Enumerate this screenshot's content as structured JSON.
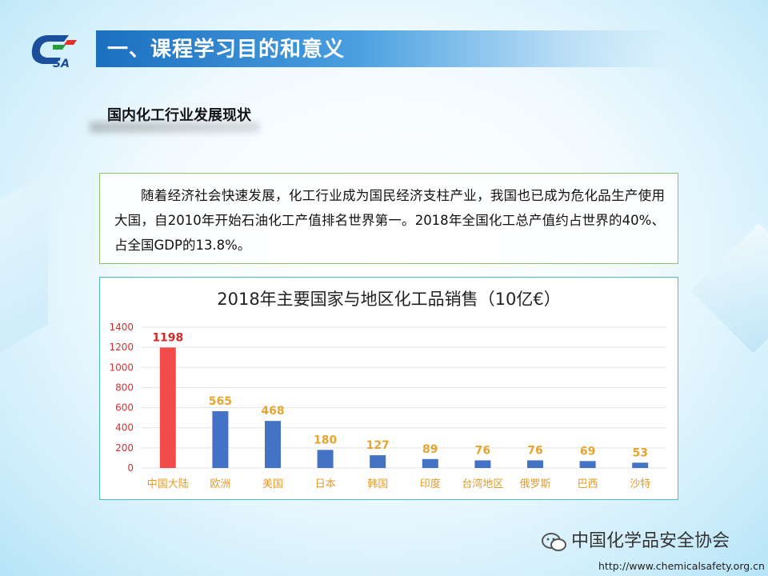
{
  "logo": {
    "text": "SA",
    "colors": {
      "blue": "#1b4f9c",
      "red": "#e03030",
      "green": "#2a9a3a"
    }
  },
  "header": {
    "title": "一、课程学习目的和意义"
  },
  "section": {
    "subtitle": "国内化工行业发展现状"
  },
  "paragraph": "随着经济社会快速发展，化工行业成为国民经济支柱产业，我国也已成为危化品生产使用大国，自2010年开始石油化工产值排名世界第一。2018年全国化工总产值约占世界的40%、占全国GDP的13.8%。",
  "chart_data": {
    "type": "bar",
    "title": "2018年主要国家与地区化工品销售（10亿€）",
    "categories": [
      "中国大陆",
      "欧洲",
      "美国",
      "日本",
      "韩国",
      "印度",
      "台湾地区",
      "俄罗斯",
      "巴西",
      "沙特"
    ],
    "values": [
      1198,
      565,
      468,
      180,
      127,
      89,
      76,
      76,
      69,
      53
    ],
    "ylim": [
      0,
      1400
    ],
    "yticks": [
      0,
      200,
      400,
      600,
      800,
      1000,
      1200,
      1400
    ],
    "grid": true,
    "legend": "none",
    "colors": {
      "highlight_bar": "#f24b4b",
      "bar": "#4472c4",
      "highlight_label": "#d42a2a",
      "label": "#e6a531",
      "axis_text": "#e09c2a",
      "ytick_text": "#d93030",
      "grid": "#e3e3e3"
    }
  },
  "footer": {
    "brand": "中国化学品安全协会",
    "url": "http://www.chemicalsafety.org.cn"
  }
}
